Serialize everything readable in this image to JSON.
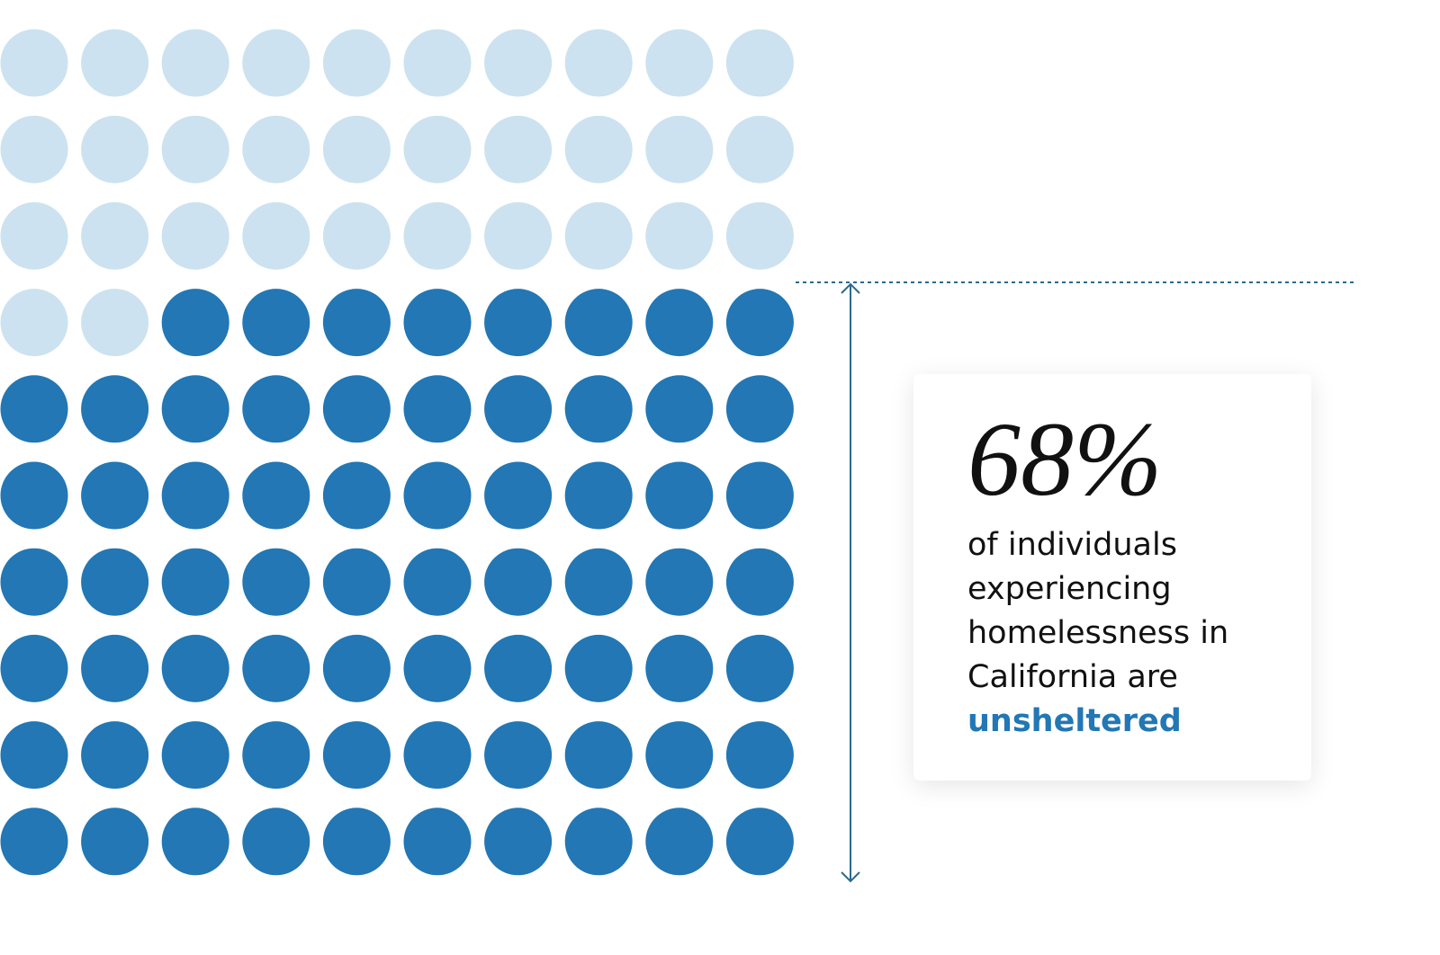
{
  "chart_data": {
    "type": "waffle",
    "value": 68,
    "value_label": "68%",
    "text": "of individuals experiencing homelessness in California are",
    "highlight": "unsheltered",
    "color": "#2277b4",
    "rest_color": "#cce2f0"
  }
}
